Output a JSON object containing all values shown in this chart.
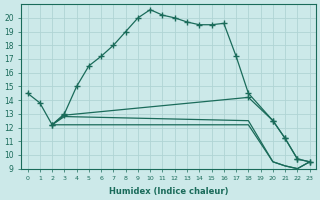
{
  "xlabel": "Humidex (Indice chaleur)",
  "background_color": "#cce9e9",
  "grid_color": "#b0d4d4",
  "line_color": "#1a6b5a",
  "x_ticks": [
    0,
    1,
    2,
    3,
    4,
    5,
    6,
    7,
    8,
    9,
    10,
    11,
    12,
    13,
    14,
    15,
    16,
    17,
    18,
    19,
    20,
    21,
    22,
    23
  ],
  "ylim": [
    9,
    21
  ],
  "xlim": [
    -0.5,
    23.5
  ],
  "yticks": [
    9,
    10,
    11,
    12,
    13,
    14,
    15,
    16,
    17,
    18,
    19,
    20
  ],
  "line1_x": [
    0,
    1,
    2,
    3,
    4,
    5,
    6,
    7,
    8,
    9,
    10,
    11,
    12,
    13,
    14,
    15,
    16,
    17,
    18,
    20,
    21,
    22,
    23
  ],
  "line1_y": [
    14.5,
    13.8,
    12.2,
    13.0,
    15.0,
    16.5,
    17.2,
    18.0,
    19.0,
    20.0,
    20.6,
    20.2,
    20.0,
    19.7,
    19.5,
    19.5,
    19.6,
    17.2,
    14.5,
    12.5,
    11.2,
    9.7,
    9.5
  ],
  "line2_x": [
    2,
    3,
    18,
    20,
    21,
    22,
    23
  ],
  "line2_y": [
    12.2,
    12.9,
    14.2,
    12.5,
    11.2,
    9.7,
    9.5
  ],
  "line3_x": [
    2,
    3,
    18,
    20,
    21,
    22,
    23
  ],
  "line3_y": [
    12.2,
    12.2,
    12.2,
    9.5,
    9.2,
    9.0,
    9.5
  ],
  "line4_x": [
    2,
    3,
    18,
    20,
    21,
    22,
    23
  ],
  "line4_y": [
    12.2,
    12.8,
    12.5,
    9.5,
    9.2,
    9.0,
    9.5
  ]
}
